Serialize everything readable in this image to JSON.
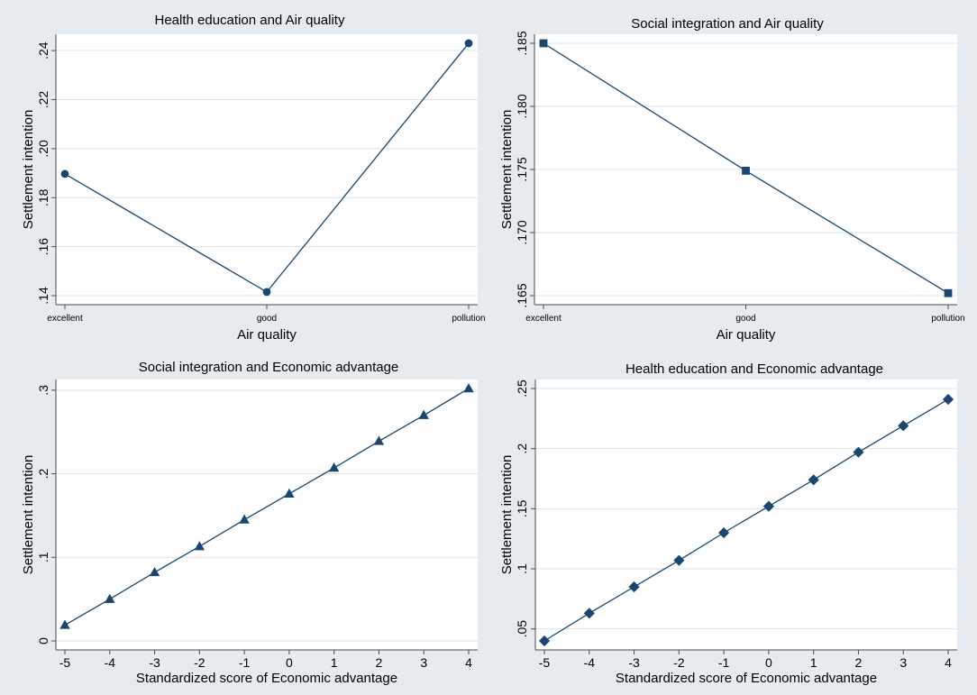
{
  "figure": {
    "colors": {
      "background": "#e5ebef",
      "plot_background": "#ffffff",
      "grid": "#dde5e9",
      "axis": "#4a4a4a",
      "series": "#1a476f",
      "text": "#000000"
    }
  },
  "chart_data": [
    {
      "type": "line",
      "title": "Health education and Air quality",
      "xlabel": "Air quality",
      "ylabel": "Settlement intention",
      "categories": [
        "excellent",
        "good",
        "pollution"
      ],
      "values": [
        0.1897,
        0.1415,
        0.243
      ],
      "marker": "circle",
      "yticks": [
        0.14,
        0.16,
        0.18,
        0.2,
        0.22,
        0.24
      ],
      "ytick_labels": [
        ".14",
        ".16",
        ".18",
        ".20",
        ".22",
        ".24"
      ],
      "ylim": [
        0.14,
        0.243
      ],
      "grid": true
    },
    {
      "type": "line",
      "title": "Social integration and Air quality",
      "xlabel": "Air quality",
      "ylabel": "Settlement intention",
      "categories": [
        "excellent",
        "good",
        "pollution"
      ],
      "values": [
        0.185,
        0.1749,
        0.1652
      ],
      "marker": "square",
      "yticks": [
        0.165,
        0.17,
        0.175,
        0.18,
        0.185
      ],
      "ytick_labels": [
        ".165",
        ".170",
        ".175",
        ".180",
        ".185"
      ],
      "ylim": [
        0.165,
        0.185
      ],
      "grid": true
    },
    {
      "type": "line",
      "title": "Social integration and Economic advantage",
      "xlabel": "Standardized score of Economic advantage",
      "ylabel": "Settlement intention",
      "x": [
        -5,
        -4,
        -3,
        -2,
        -1,
        0,
        1,
        2,
        3,
        4
      ],
      "xtick_labels": [
        "-5",
        "-4",
        "-3",
        "-2",
        "-1",
        "0",
        "1",
        "2",
        "3",
        "4"
      ],
      "xlim": [
        -5,
        4
      ],
      "values": [
        0.019,
        0.05,
        0.082,
        0.113,
        0.145,
        0.176,
        0.207,
        0.239,
        0.27,
        0.302
      ],
      "marker": "triangle",
      "yticks": [
        0,
        0.1,
        0.2,
        0.3
      ],
      "ytick_labels": [
        "0",
        ".1",
        ".2",
        ".3"
      ],
      "ylim": [
        0,
        0.302
      ],
      "grid": true
    },
    {
      "type": "line",
      "title": "Health education and Economic advantage",
      "xlabel": "Standardized score of Economic advantage",
      "ylabel": "Settlement intention",
      "x": [
        -5,
        -4,
        -3,
        -2,
        -1,
        0,
        1,
        2,
        3,
        4
      ],
      "xtick_labels": [
        "-5",
        "-4",
        "-3",
        "-2",
        "-1",
        "0",
        "1",
        "2",
        "3",
        "4"
      ],
      "xlim": [
        -5,
        4
      ],
      "values": [
        0.04,
        0.063,
        0.085,
        0.107,
        0.13,
        0.152,
        0.174,
        0.197,
        0.219,
        0.241
      ],
      "marker": "diamond",
      "yticks": [
        0.05,
        0.1,
        0.15,
        0.2,
        0.25
      ],
      "ytick_labels": [
        ".05",
        ".1",
        ".15",
        ".2",
        ".25"
      ],
      "ylim": [
        0.04,
        0.25
      ],
      "grid": true
    }
  ]
}
